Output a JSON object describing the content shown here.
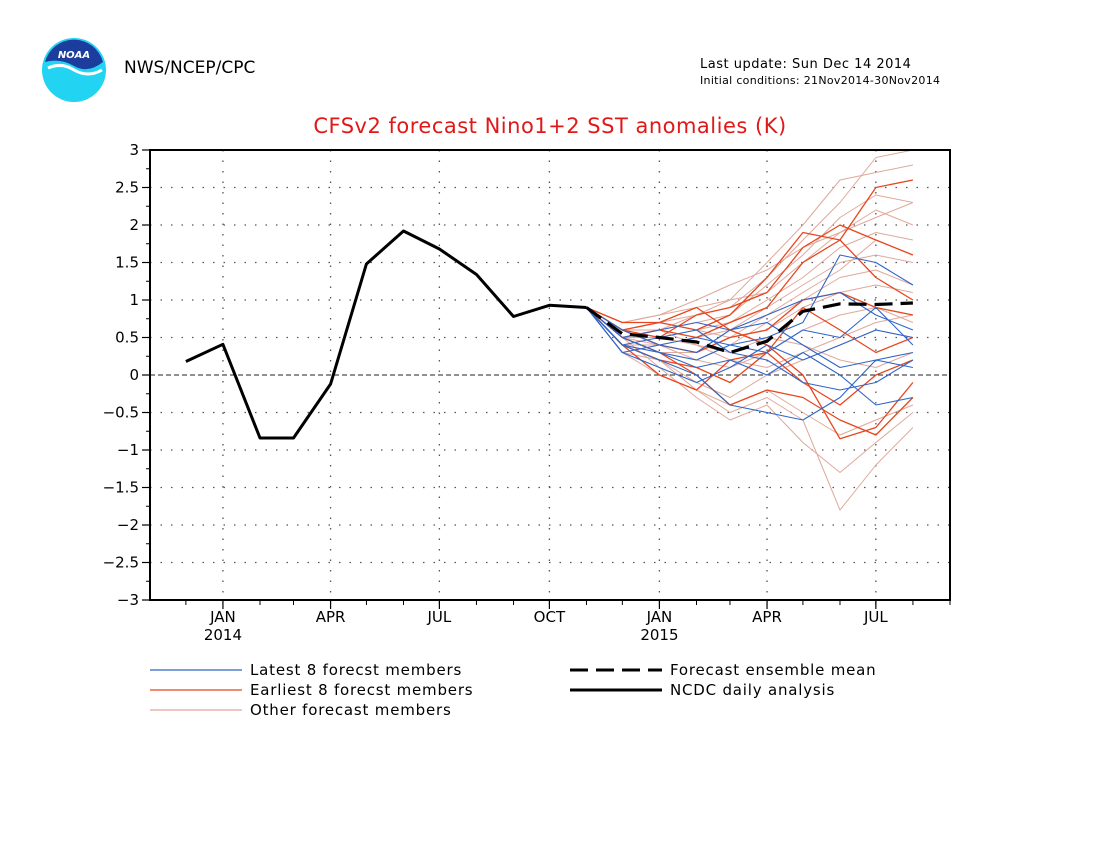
{
  "header": {
    "org": "NWS/NCEP/CPC",
    "last_update": "Last update: Sun Dec 14 2014",
    "initial_conditions": "Initial conditions: 21Nov2014-30Nov2014",
    "logo_text": "NOAA"
  },
  "colors": {
    "title": "#e01818",
    "latest": "#2f66c8",
    "earliest": "#e8461e",
    "other": "#e0a89a",
    "analysis": "#000000",
    "logo_blue": "#1c3c9e",
    "logo_cyan": "#22d4f2"
  },
  "chart_data": {
    "type": "line",
    "title": "CFSv2 forecast Nino1+2 SST anomalies (K)",
    "xlabel": "",
    "ylabel": "",
    "ylim": [
      -3,
      3
    ],
    "yticks": [
      "3",
      "2.5",
      "2",
      "1.5",
      "1",
      "0.5",
      "0",
      "−0.5",
      "−1",
      "−1.5",
      "−2",
      "−2.5",
      "−3"
    ],
    "ytick_values": [
      3,
      2.5,
      2,
      1.5,
      1,
      0.5,
      0,
      -0.5,
      -1,
      -1.5,
      -2,
      -2.5,
      -3
    ],
    "x_range": [
      "2013-11-15",
      "2015-09-15"
    ],
    "xticks": [
      {
        "month": "2014-01-15",
        "label": "JAN",
        "sub": "2014"
      },
      {
        "month": "2014-04-15",
        "label": "APR",
        "sub": ""
      },
      {
        "month": "2014-07-15",
        "label": "JUL",
        "sub": ""
      },
      {
        "month": "2014-10-15",
        "label": "OCT",
        "sub": ""
      },
      {
        "month": "2015-01-15",
        "label": "JAN",
        "sub": "2015"
      },
      {
        "month": "2015-04-15",
        "label": "APR",
        "sub": ""
      },
      {
        "month": "2015-07-15",
        "label": "JUL",
        "sub": ""
      }
    ],
    "grid": true,
    "legend_position": "bottom",
    "legend": {
      "latest": "Latest 8 forecst members",
      "earliest": "Earliest 8 forecst members",
      "other": "Other forecast members",
      "mean": "Forecast ensemble mean",
      "analysis": "NCDC daily analysis"
    },
    "analysis": {
      "x": [
        "2013-12-15",
        "2014-01-15",
        "2014-02-15",
        "2014-03-15",
        "2014-04-15",
        "2014-05-15",
        "2014-06-15",
        "2014-07-15",
        "2014-08-15",
        "2014-09-15",
        "2014-10-15",
        "2014-11-15"
      ],
      "y": [
        0.18,
        0.41,
        -0.84,
        -0.84,
        -0.12,
        1.48,
        1.92,
        1.68,
        1.34,
        0.78,
        0.93,
        0.9
      ]
    },
    "ensemble_mean": {
      "x": [
        "2014-11-15",
        "2014-12-15",
        "2015-01-15",
        "2015-02-15",
        "2015-03-15",
        "2015-04-15",
        "2015-05-15",
        "2015-06-15",
        "2015-07-15",
        "2015-08-15"
      ],
      "y": [
        0.9,
        0.55,
        0.5,
        0.44,
        0.3,
        0.45,
        0.85,
        0.95,
        0.94,
        0.96
      ]
    },
    "forecast_months": [
      "2014-11-15",
      "2014-12-15",
      "2015-01-15",
      "2015-02-15",
      "2015-03-15",
      "2015-04-15",
      "2015-05-15",
      "2015-06-15",
      "2015-07-15",
      "2015-08-15"
    ],
    "members": [
      {
        "group": "other",
        "y": [
          0.9,
          0.6,
          0.7,
          0.8,
          0.9,
          1.3,
          1.8,
          2.3,
          2.9,
          3.0
        ]
      },
      {
        "group": "other",
        "y": [
          0.9,
          0.7,
          0.8,
          0.9,
          1.0,
          1.5,
          2.0,
          2.6,
          2.7,
          2.8
        ]
      },
      {
        "group": "other",
        "y": [
          0.9,
          0.5,
          0.6,
          0.7,
          0.8,
          1.2,
          1.6,
          2.1,
          2.4,
          2.3
        ]
      },
      {
        "group": "other",
        "y": [
          0.9,
          0.6,
          0.6,
          0.8,
          1.0,
          1.1,
          1.5,
          1.9,
          2.2,
          2.0
        ]
      },
      {
        "group": "other",
        "y": [
          0.9,
          0.5,
          0.5,
          0.6,
          0.7,
          1.0,
          1.3,
          1.7,
          1.9,
          1.8
        ]
      },
      {
        "group": "other",
        "y": [
          0.9,
          0.4,
          0.4,
          0.5,
          0.6,
          0.9,
          1.2,
          1.5,
          1.6,
          1.5
        ]
      },
      {
        "group": "other",
        "y": [
          0.9,
          0.5,
          0.3,
          0.2,
          0.4,
          0.7,
          1.0,
          1.3,
          1.4,
          1.2
        ]
      },
      {
        "group": "other",
        "y": [
          0.9,
          0.4,
          0.3,
          0.3,
          0.5,
          0.6,
          0.9,
          1.1,
          1.2,
          1.1
        ]
      },
      {
        "group": "other",
        "y": [
          0.9,
          0.5,
          0.4,
          0.2,
          0.1,
          0.3,
          0.6,
          0.8,
          0.9,
          0.7
        ]
      },
      {
        "group": "other",
        "y": [
          0.9,
          0.3,
          0.2,
          -0.1,
          -0.3,
          0.0,
          0.2,
          0.4,
          0.6,
          0.5
        ]
      },
      {
        "group": "other",
        "y": [
          0.9,
          0.4,
          0.2,
          -0.2,
          -0.5,
          -0.3,
          -0.6,
          -1.8,
          -1.2,
          -0.7
        ]
      },
      {
        "group": "other",
        "y": [
          0.9,
          0.5,
          0.1,
          -0.3,
          -0.6,
          -0.4,
          -0.9,
          -1.3,
          -0.9,
          -0.5
        ]
      },
      {
        "group": "other",
        "y": [
          0.9,
          0.3,
          0.0,
          -0.2,
          -0.4,
          -0.2,
          -0.5,
          -0.8,
          -0.6,
          -0.4
        ]
      },
      {
        "group": "other",
        "y": [
          0.9,
          0.6,
          0.5,
          0.4,
          0.2,
          0.1,
          0.3,
          0.5,
          0.7,
          0.8
        ]
      },
      {
        "group": "other",
        "y": [
          0.9,
          0.7,
          0.8,
          1.0,
          1.2,
          1.4,
          1.7,
          1.9,
          2.1,
          2.3
        ]
      },
      {
        "group": "other",
        "y": [
          0.9,
          0.6,
          0.7,
          0.6,
          0.5,
          0.8,
          1.1,
          1.4,
          1.8,
          1.6
        ]
      },
      {
        "group": "other",
        "y": [
          0.9,
          0.5,
          0.6,
          0.4,
          0.3,
          0.5,
          0.4,
          0.2,
          0.1,
          0.3
        ]
      },
      {
        "group": "earliest",
        "y": [
          0.9,
          0.7,
          0.7,
          0.6,
          0.8,
          1.3,
          1.9,
          1.8,
          2.5,
          2.6
        ]
      },
      {
        "group": "earliest",
        "y": [
          0.9,
          0.6,
          0.5,
          0.8,
          0.9,
          1.1,
          1.7,
          2.0,
          1.8,
          1.6
        ]
      },
      {
        "group": "earliest",
        "y": [
          0.9,
          0.5,
          0.6,
          0.5,
          0.7,
          0.9,
          1.5,
          1.8,
          1.3,
          1.0
        ]
      },
      {
        "group": "earliest",
        "y": [
          0.9,
          0.6,
          0.4,
          0.3,
          0.5,
          0.6,
          1.0,
          1.1,
          0.9,
          0.8
        ]
      },
      {
        "group": "earliest",
        "y": [
          0.9,
          0.4,
          0.2,
          0.1,
          -0.1,
          0.3,
          0.9,
          0.6,
          0.3,
          0.5
        ]
      },
      {
        "group": "earliest",
        "y": [
          0.9,
          0.5,
          0.3,
          0.0,
          -0.4,
          -0.2,
          -0.3,
          -0.6,
          -0.8,
          -0.3
        ]
      },
      {
        "group": "earliest",
        "y": [
          0.9,
          0.6,
          0.7,
          0.9,
          0.6,
          0.4,
          0.0,
          -0.85,
          -0.7,
          -0.1
        ]
      },
      {
        "group": "earliest",
        "y": [
          0.9,
          0.4,
          0.0,
          -0.2,
          0.2,
          0.3,
          -0.1,
          -0.4,
          0.0,
          0.2
        ]
      },
      {
        "group": "latest",
        "y": [
          0.9,
          0.4,
          0.3,
          0.2,
          0.4,
          0.5,
          0.7,
          1.6,
          1.5,
          1.2
        ]
      },
      {
        "group": "latest",
        "y": [
          0.9,
          0.5,
          0.6,
          0.7,
          0.6,
          0.8,
          1.0,
          1.1,
          0.8,
          0.6
        ]
      },
      {
        "group": "latest",
        "y": [
          0.9,
          0.3,
          0.4,
          0.5,
          0.4,
          0.3,
          0.6,
          0.5,
          0.9,
          0.4
        ]
      },
      {
        "group": "latest",
        "y": [
          0.9,
          0.4,
          0.2,
          0.0,
          -0.4,
          -0.5,
          -0.6,
          -0.3,
          0.2,
          0.1
        ]
      },
      {
        "group": "latest",
        "y": [
          0.9,
          0.5,
          0.3,
          0.1,
          0.2,
          0.0,
          0.3,
          0.0,
          -0.4,
          -0.3
        ]
      },
      {
        "group": "latest",
        "y": [
          0.9,
          0.6,
          0.4,
          0.3,
          0.6,
          0.7,
          0.4,
          0.1,
          0.2,
          0.3
        ]
      },
      {
        "group": "latest",
        "y": [
          0.9,
          0.4,
          0.5,
          0.6,
          0.3,
          0.2,
          -0.1,
          -0.2,
          -0.1,
          0.2
        ]
      },
      {
        "group": "latest",
        "y": [
          0.9,
          0.3,
          0.1,
          -0.1,
          0.1,
          0.4,
          0.2,
          0.4,
          0.6,
          0.5
        ]
      }
    ]
  }
}
